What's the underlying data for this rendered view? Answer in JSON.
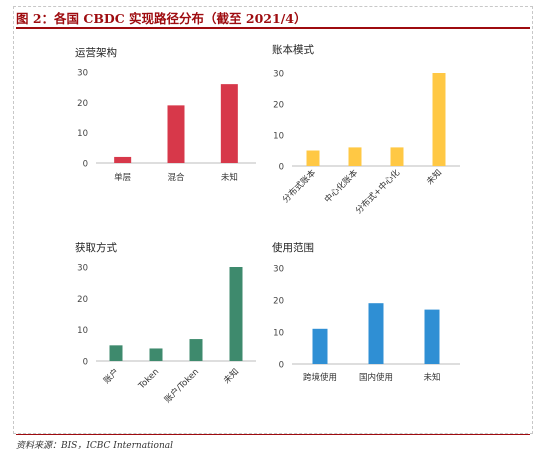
{
  "header": {
    "title": "图 2：各国 CBDC 实现路径分布（截至 2021/4）"
  },
  "footer": {
    "source": "资料来源：BIS，ICBC International"
  },
  "chart_data": [
    {
      "type": "bar",
      "title": "运营架构",
      "categories": [
        "单层",
        "混合",
        "未知"
      ],
      "values": [
        2,
        19,
        26
      ],
      "ylim": [
        0,
        30
      ],
      "yticks": [
        "0",
        "10",
        "20",
        "30"
      ],
      "color": "#d7384a",
      "tick_rotation": 0
    },
    {
      "type": "bar",
      "title": "账本模式",
      "categories": [
        "分布式账本",
        "中心化账本",
        "分布式+中心化",
        "未知"
      ],
      "values": [
        5,
        6,
        6,
        30
      ],
      "ylim": [
        0,
        30
      ],
      "yticks": [
        "0",
        "10",
        "20",
        "30"
      ],
      "color": "#ffc844",
      "tick_rotation": -45
    },
    {
      "type": "bar",
      "title": "获取方式",
      "categories": [
        "账户",
        "Token",
        "账户/Token",
        "未知"
      ],
      "values": [
        5,
        4,
        7,
        30
      ],
      "ylim": [
        0,
        30
      ],
      "yticks": [
        "0",
        "10",
        "20",
        "30"
      ],
      "color": "#3e8a6d",
      "tick_rotation": -45
    },
    {
      "type": "bar",
      "title": "使用范围",
      "categories": [
        "跨境使用",
        "国内使用",
        "未知"
      ],
      "values": [
        11,
        19,
        17
      ],
      "ylim": [
        0,
        30
      ],
      "yticks": [
        "0",
        "10",
        "20",
        "30"
      ],
      "color": "#2f8fd4",
      "tick_rotation": 0
    }
  ]
}
